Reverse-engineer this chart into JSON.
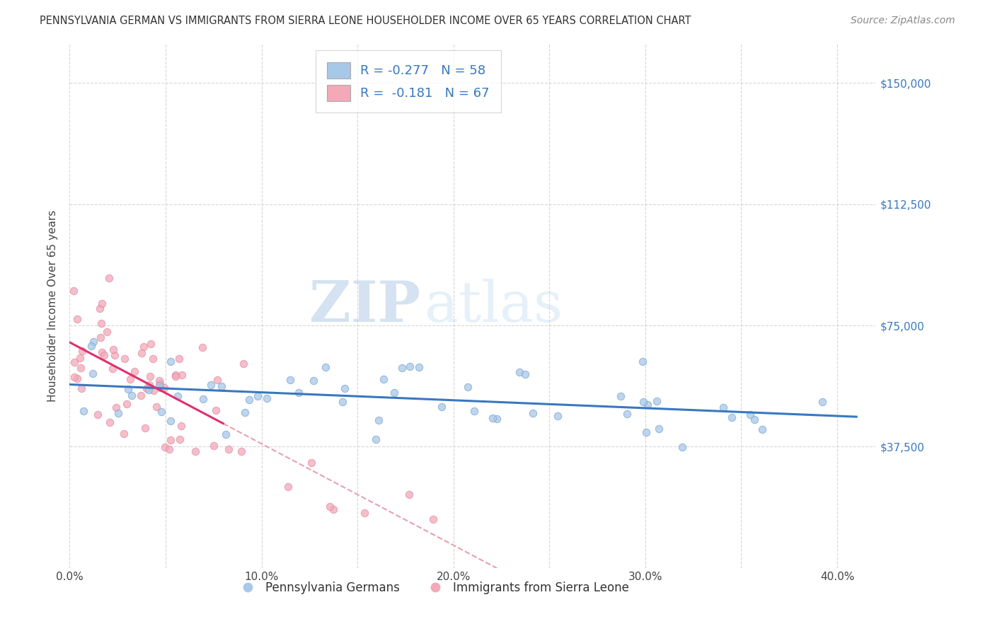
{
  "title": "PENNSYLVANIA GERMAN VS IMMIGRANTS FROM SIERRA LEONE HOUSEHOLDER INCOME OVER 65 YEARS CORRELATION CHART",
  "source": "Source: ZipAtlas.com",
  "ylabel": "Householder Income Over 65 years",
  "xlim": [
    0.0,
    0.42
  ],
  "ylim": [
    0,
    162000
  ],
  "xticks": [
    0.0,
    0.05,
    0.1,
    0.15,
    0.2,
    0.25,
    0.3,
    0.35,
    0.4
  ],
  "xticklabels": [
    "0.0%",
    "",
    "10.0%",
    "",
    "20.0%",
    "",
    "30.0%",
    "",
    "40.0%"
  ],
  "yticks": [
    0,
    37500,
    75000,
    112500,
    150000
  ],
  "yticklabels": [
    "",
    "$37,500",
    "$75,000",
    "$112,500",
    "$150,000"
  ],
  "blue_R": -0.277,
  "blue_N": 58,
  "pink_R": -0.181,
  "pink_N": 67,
  "blue_color": "#a8c8e8",
  "pink_color": "#f4a8b8",
  "blue_line_color": "#3878c0",
  "pink_line_color": "#e03070",
  "dashed_line_color": "#e8a0b0",
  "watermark_zip": "ZIP",
  "watermark_atlas": "atlas",
  "legend_label_blue": "Pennsylvania Germans",
  "legend_label_pink": "Immigrants from Sierra Leone"
}
